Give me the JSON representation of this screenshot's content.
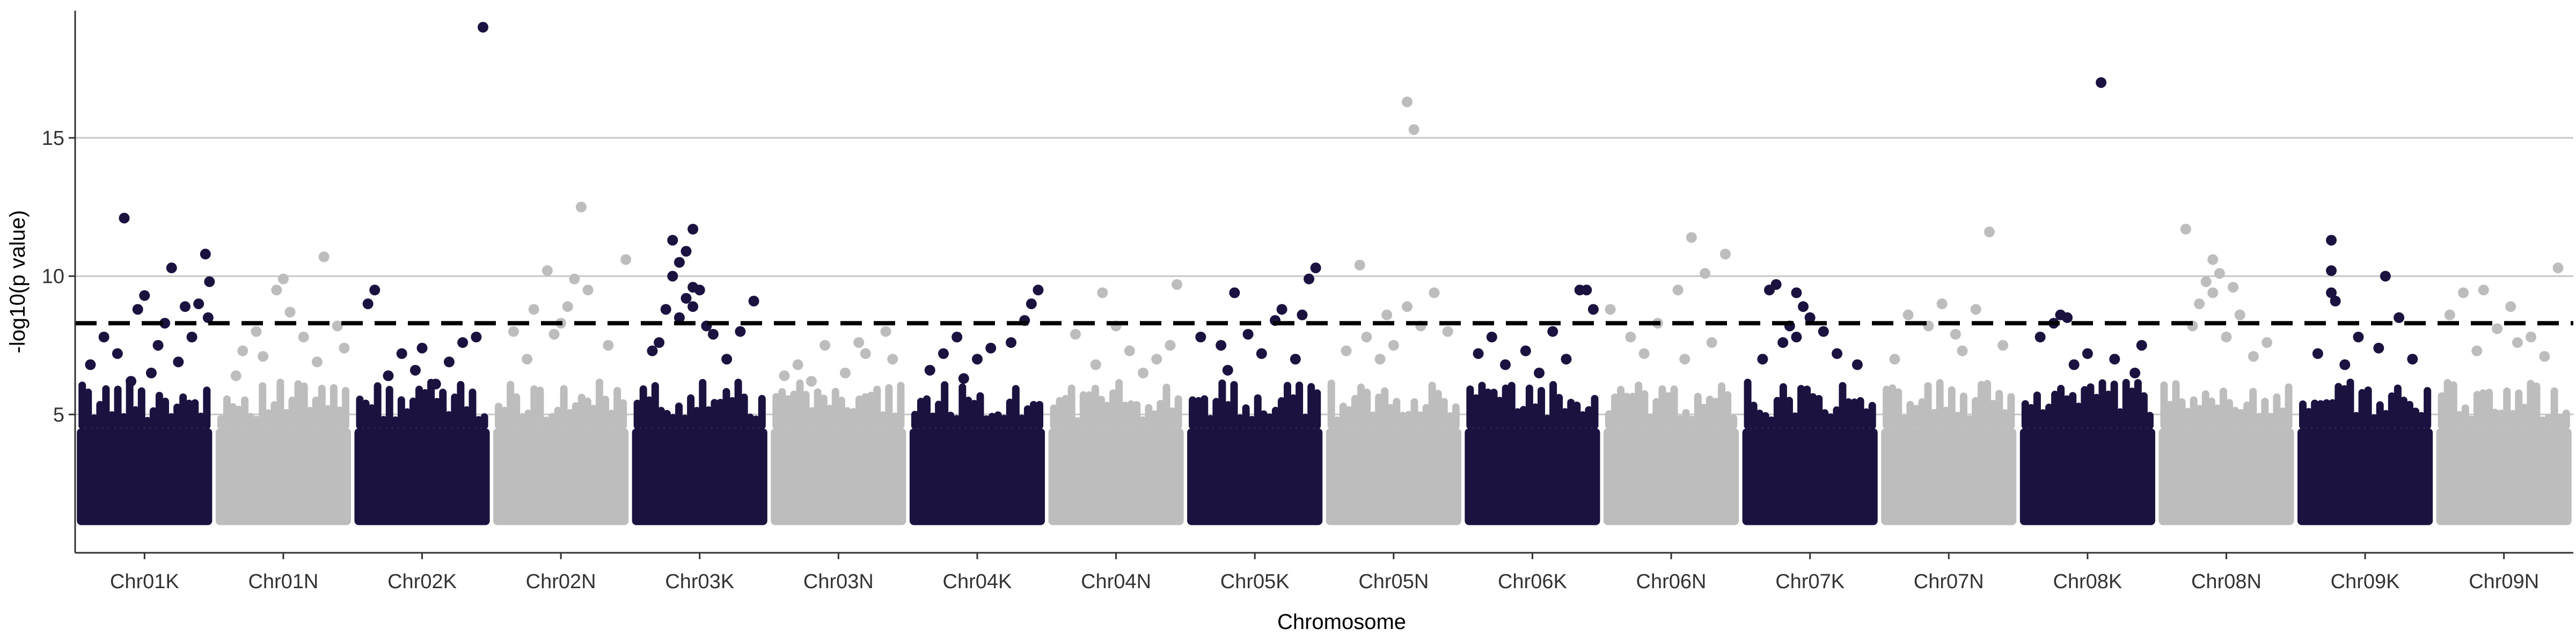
{
  "chart_data": {
    "type": "scatter",
    "subtype": "manhattan",
    "title": "",
    "xlabel": "Chromosome",
    "ylabel": "-log10(p value)",
    "ylim": [
      0,
      19.5
    ],
    "yticks": [
      5,
      10,
      15
    ],
    "grid": "horizontal major lines at y ticks",
    "threshold": 8.3,
    "threshold_style": "dashed black line",
    "colors": {
      "dark": "#1c1240",
      "light": "#bdbdbd"
    },
    "base_band": [
      1,
      4.5
    ],
    "categories": [
      "Chr01K",
      "Chr01N",
      "Chr02K",
      "Chr02N",
      "Chr03K",
      "Chr03N",
      "Chr04K",
      "Chr04N",
      "Chr05K",
      "Chr05N",
      "Chr06K",
      "Chr06N",
      "Chr07K",
      "Chr07N",
      "Chr08K",
      "Chr08N",
      "Chr09K",
      "Chr09N"
    ],
    "series": [
      {
        "chromosome": "Chr01K",
        "color": "dark",
        "points": [
          [
            0.35,
            12.1
          ],
          [
            0.95,
            10.8
          ],
          [
            0.98,
            9.8
          ],
          [
            0.7,
            10.3
          ],
          [
            0.5,
            9.3
          ],
          [
            0.45,
            8.8
          ],
          [
            0.2,
            7.8
          ],
          [
            0.8,
            8.9
          ],
          [
            0.6,
            7.5
          ],
          [
            0.9,
            9.0
          ],
          [
            0.3,
            7.2
          ],
          [
            0.65,
            8.3
          ],
          [
            0.75,
            6.9
          ],
          [
            0.55,
            6.5
          ],
          [
            0.1,
            6.8
          ],
          [
            0.85,
            7.8
          ],
          [
            0.4,
            6.2
          ],
          [
            0.97,
            8.5
          ]
        ]
      },
      {
        "chromosome": "Chr01N",
        "color": "light",
        "points": [
          [
            0.8,
            10.7
          ],
          [
            0.5,
            9.9
          ],
          [
            0.45,
            9.5
          ],
          [
            0.2,
            7.3
          ],
          [
            0.55,
            8.7
          ],
          [
            0.9,
            8.2
          ],
          [
            0.35,
            7.1
          ],
          [
            0.65,
            7.8
          ],
          [
            0.15,
            6.4
          ],
          [
            0.75,
            6.9
          ],
          [
            0.95,
            7.4
          ],
          [
            0.3,
            8.0
          ]
        ]
      },
      {
        "chromosome": "Chr02K",
        "color": "dark",
        "points": [
          [
            0.95,
            19.0
          ],
          [
            0.15,
            9.5
          ],
          [
            0.1,
            9.0
          ],
          [
            0.9,
            7.8
          ],
          [
            0.5,
            7.4
          ],
          [
            0.35,
            7.2
          ],
          [
            0.7,
            6.9
          ],
          [
            0.8,
            7.6
          ],
          [
            0.25,
            6.4
          ],
          [
            0.6,
            6.1
          ],
          [
            0.45,
            6.6
          ]
        ]
      },
      {
        "chromosome": "Chr02N",
        "color": "light",
        "points": [
          [
            0.65,
            12.5
          ],
          [
            0.4,
            10.2
          ],
          [
            0.98,
            10.6
          ],
          [
            0.6,
            9.9
          ],
          [
            0.7,
            9.5
          ],
          [
            0.3,
            8.8
          ],
          [
            0.5,
            8.3
          ],
          [
            0.15,
            8.0
          ],
          [
            0.85,
            7.5
          ],
          [
            0.45,
            7.9
          ],
          [
            0.25,
            7.0
          ],
          [
            0.55,
            8.9
          ]
        ]
      },
      {
        "chromosome": "Chr03K",
        "color": "dark",
        "points": [
          [
            0.3,
            11.3
          ],
          [
            0.45,
            11.7
          ],
          [
            0.4,
            10.9
          ],
          [
            0.35,
            10.5
          ],
          [
            0.3,
            10.0
          ],
          [
            0.45,
            9.6
          ],
          [
            0.4,
            9.2
          ],
          [
            0.5,
            9.5
          ],
          [
            0.9,
            9.1
          ],
          [
            0.25,
            8.8
          ],
          [
            0.35,
            8.5
          ],
          [
            0.45,
            8.9
          ],
          [
            0.55,
            8.2
          ],
          [
            0.2,
            7.6
          ],
          [
            0.6,
            7.9
          ],
          [
            0.8,
            8.0
          ],
          [
            0.7,
            7.0
          ],
          [
            0.15,
            7.3
          ]
        ]
      },
      {
        "chromosome": "Chr03N",
        "color": "light",
        "points": [
          [
            0.85,
            8.0
          ],
          [
            0.4,
            7.5
          ],
          [
            0.7,
            7.2
          ],
          [
            0.2,
            6.8
          ],
          [
            0.55,
            6.5
          ],
          [
            0.9,
            7.0
          ],
          [
            0.3,
            6.2
          ],
          [
            0.65,
            7.6
          ],
          [
            0.1,
            6.4
          ]
        ]
      },
      {
        "chromosome": "Chr04K",
        "color": "dark",
        "points": [
          [
            0.95,
            9.5
          ],
          [
            0.85,
            8.4
          ],
          [
            0.9,
            9.0
          ],
          [
            0.35,
            7.8
          ],
          [
            0.6,
            7.4
          ],
          [
            0.25,
            7.2
          ],
          [
            0.5,
            7.0
          ],
          [
            0.75,
            7.6
          ],
          [
            0.15,
            6.6
          ],
          [
            0.4,
            6.3
          ]
        ]
      },
      {
        "chromosome": "Chr04N",
        "color": "light",
        "points": [
          [
            0.95,
            9.7
          ],
          [
            0.4,
            9.4
          ],
          [
            0.2,
            7.9
          ],
          [
            0.6,
            7.3
          ],
          [
            0.8,
            7.0
          ],
          [
            0.35,
            6.8
          ],
          [
            0.5,
            8.2
          ],
          [
            0.7,
            6.5
          ],
          [
            0.9,
            7.5
          ]
        ]
      },
      {
        "chromosome": "Chr05K",
        "color": "dark",
        "points": [
          [
            0.95,
            10.3
          ],
          [
            0.35,
            9.4
          ],
          [
            0.7,
            8.8
          ],
          [
            0.85,
            8.6
          ],
          [
            0.65,
            8.4
          ],
          [
            0.45,
            7.9
          ],
          [
            0.25,
            7.5
          ],
          [
            0.55,
            7.2
          ],
          [
            0.1,
            7.8
          ],
          [
            0.8,
            7.0
          ],
          [
            0.3,
            6.6
          ],
          [
            0.9,
            9.9
          ]
        ]
      },
      {
        "chromosome": "Chr05N",
        "color": "light",
        "points": [
          [
            0.6,
            16.3
          ],
          [
            0.65,
            15.3
          ],
          [
            0.25,
            10.4
          ],
          [
            0.8,
            9.4
          ],
          [
            0.6,
            8.9
          ],
          [
            0.45,
            8.6
          ],
          [
            0.7,
            8.2
          ],
          [
            0.3,
            7.8
          ],
          [
            0.5,
            7.5
          ],
          [
            0.9,
            8.0
          ],
          [
            0.15,
            7.3
          ],
          [
            0.4,
            7.0
          ]
        ]
      },
      {
        "chromosome": "Chr06K",
        "color": "dark",
        "points": [
          [
            0.85,
            9.5
          ],
          [
            0.9,
            9.5
          ],
          [
            0.65,
            8.0
          ],
          [
            0.95,
            8.8
          ],
          [
            0.2,
            7.8
          ],
          [
            0.45,
            7.3
          ],
          [
            0.75,
            7.0
          ],
          [
            0.3,
            6.8
          ],
          [
            0.55,
            6.5
          ],
          [
            0.1,
            7.2
          ]
        ]
      },
      {
        "chromosome": "Chr06N",
        "color": "light",
        "points": [
          [
            0.65,
            11.4
          ],
          [
            0.9,
            10.8
          ],
          [
            0.75,
            10.1
          ],
          [
            0.55,
            9.5
          ],
          [
            0.05,
            8.8
          ],
          [
            0.4,
            8.3
          ],
          [
            0.2,
            7.8
          ],
          [
            0.8,
            7.6
          ],
          [
            0.3,
            7.2
          ],
          [
            0.6,
            7.0
          ]
        ]
      },
      {
        "chromosome": "Chr07K",
        "color": "dark",
        "points": [
          [
            0.25,
            9.7
          ],
          [
            0.2,
            9.5
          ],
          [
            0.4,
            9.4
          ],
          [
            0.5,
            8.5
          ],
          [
            0.45,
            8.9
          ],
          [
            0.35,
            8.2
          ],
          [
            0.6,
            8.0
          ],
          [
            0.3,
            7.6
          ],
          [
            0.4,
            7.8
          ],
          [
            0.7,
            7.2
          ],
          [
            0.15,
            7.0
          ],
          [
            0.85,
            6.8
          ]
        ]
      },
      {
        "chromosome": "Chr07N",
        "color": "light",
        "points": [
          [
            0.8,
            11.6
          ],
          [
            0.45,
            9.0
          ],
          [
            0.7,
            8.8
          ],
          [
            0.2,
            8.6
          ],
          [
            0.35,
            8.2
          ],
          [
            0.55,
            7.9
          ],
          [
            0.9,
            7.5
          ],
          [
            0.6,
            7.3
          ],
          [
            0.1,
            7.0
          ]
        ]
      },
      {
        "chromosome": "Chr08K",
        "color": "dark",
        "points": [
          [
            0.6,
            17.0
          ],
          [
            0.3,
            8.6
          ],
          [
            0.35,
            8.5
          ],
          [
            0.25,
            8.3
          ],
          [
            0.9,
            7.5
          ],
          [
            0.15,
            7.8
          ],
          [
            0.5,
            7.2
          ],
          [
            0.7,
            7.0
          ],
          [
            0.4,
            6.8
          ],
          [
            0.85,
            6.5
          ]
        ]
      },
      {
        "chromosome": "Chr08N",
        "color": "light",
        "points": [
          [
            0.2,
            11.7
          ],
          [
            0.4,
            10.6
          ],
          [
            0.45,
            10.1
          ],
          [
            0.35,
            9.8
          ],
          [
            0.4,
            9.4
          ],
          [
            0.55,
            9.6
          ],
          [
            0.3,
            9.0
          ],
          [
            0.6,
            8.6
          ],
          [
            0.25,
            8.2
          ],
          [
            0.8,
            7.6
          ],
          [
            0.5,
            7.8
          ],
          [
            0.7,
            7.1
          ]
        ]
      },
      {
        "chromosome": "Chr09K",
        "color": "dark",
        "points": [
          [
            0.25,
            11.3
          ],
          [
            0.25,
            10.2
          ],
          [
            0.65,
            10.0
          ],
          [
            0.25,
            9.4
          ],
          [
            0.28,
            9.1
          ],
          [
            0.75,
            8.5
          ],
          [
            0.45,
            7.8
          ],
          [
            0.6,
            7.4
          ],
          [
            0.85,
            7.0
          ],
          [
            0.15,
            7.2
          ],
          [
            0.35,
            6.8
          ]
        ]
      },
      {
        "chromosome": "Chr09N",
        "color": "light",
        "points": [
          [
            0.9,
            10.3
          ],
          [
            0.2,
            9.4
          ],
          [
            0.35,
            9.5
          ],
          [
            0.55,
            8.9
          ],
          [
            0.1,
            8.6
          ],
          [
            0.45,
            8.1
          ],
          [
            0.7,
            7.8
          ],
          [
            0.3,
            7.3
          ],
          [
            0.8,
            7.1
          ],
          [
            0.6,
            7.6
          ]
        ]
      }
    ]
  }
}
